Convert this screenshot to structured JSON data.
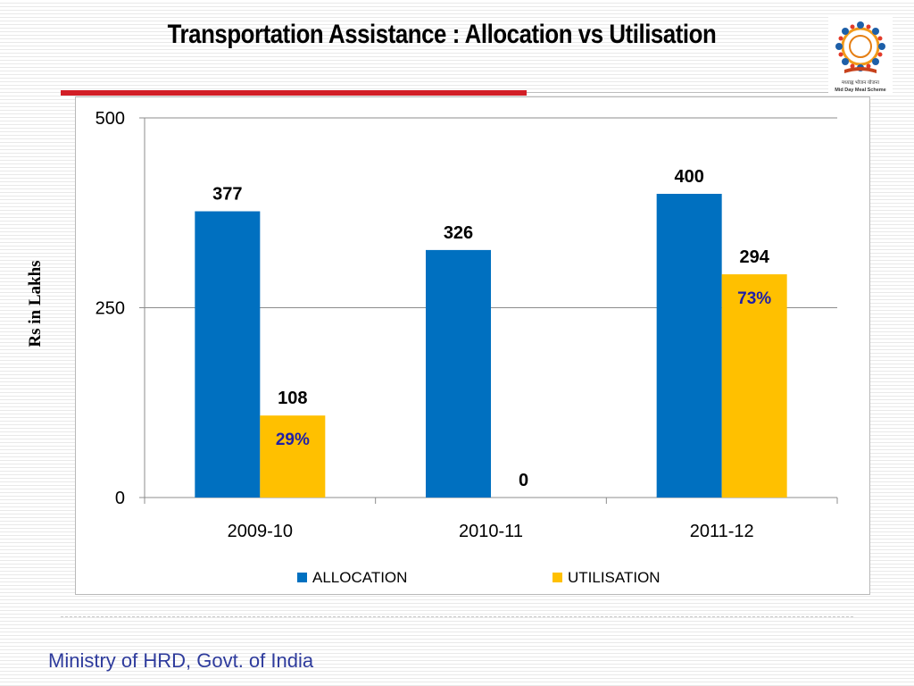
{
  "slide": {
    "title": "Transportation Assistance : Allocation vs Utilisation",
    "footer": "Ministry of HRD, Govt. of India",
    "logo_caption": "मध्याह्न भोजन योजना",
    "logo_caption_en": "Mid Day Meal Scheme"
  },
  "chart_data": {
    "type": "bar",
    "title": "",
    "xlabel": "",
    "ylabel": "Rs in Lakhs",
    "ylim": [
      0,
      500
    ],
    "yticks": [
      0,
      250,
      500
    ],
    "categories": [
      "2009-10",
      "2010-11",
      "2011-12"
    ],
    "series": [
      {
        "name": "ALLOCATION",
        "color": "#0070c0",
        "values": [
          377,
          326,
          400
        ]
      },
      {
        "name": "UTILISATION",
        "color": "#ffc000",
        "values": [
          108,
          0,
          294
        ]
      }
    ],
    "percent_labels": [
      "29%",
      "",
      "73%"
    ],
    "percent_color": "#1f1fa8",
    "grid": true,
    "legend_position": "bottom"
  }
}
